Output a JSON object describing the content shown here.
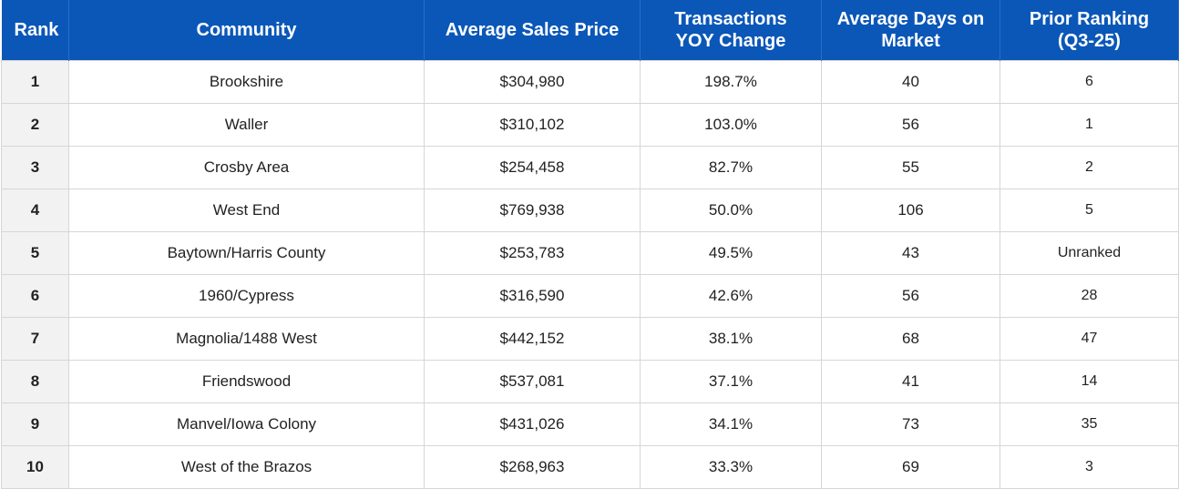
{
  "table": {
    "headers": [
      "Rank",
      "Community",
      "Average Sales Price",
      "Transactions YOY Change",
      "Average Days on Market",
      "Prior Ranking (Q3-25)"
    ],
    "rows": [
      [
        "1",
        "Brookshire",
        "$304,980",
        "198.7%",
        "40",
        "6"
      ],
      [
        "2",
        "Waller",
        "$310,102",
        "103.0%",
        "56",
        "1"
      ],
      [
        "3",
        "Crosby Area",
        "$254,458",
        "82.7%",
        "55",
        "2"
      ],
      [
        "4",
        "West End",
        "$769,938",
        "50.0%",
        "106",
        "5"
      ],
      [
        "5",
        "Baytown/Harris County",
        "$253,783",
        "49.5%",
        "43",
        "Unranked"
      ],
      [
        "6",
        "1960/Cypress",
        "$316,590",
        "42.6%",
        "56",
        "28"
      ],
      [
        "7",
        "Magnolia/1488 West",
        "$442,152",
        "38.1%",
        "68",
        "47"
      ],
      [
        "8",
        "Friendswood",
        "$537,081",
        "37.1%",
        "41",
        "14"
      ],
      [
        "9",
        "Manvel/Iowa Colony",
        "$431,026",
        "34.1%",
        "73",
        "35"
      ],
      [
        "10",
        "West of the Brazos",
        "$268,963",
        "33.3%",
        "69",
        "3"
      ]
    ]
  }
}
